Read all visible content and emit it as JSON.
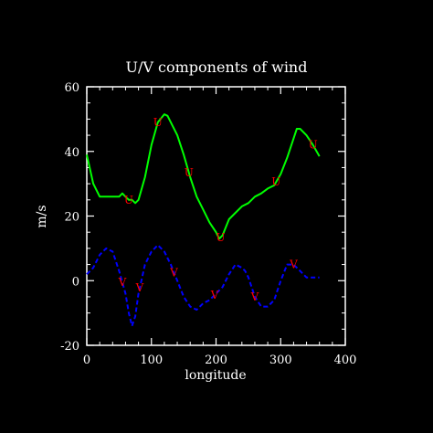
{
  "chart_data": {
    "type": "line",
    "title": "U/V components of wind",
    "xlabel": "longitude",
    "ylabel": "m/s",
    "xlim": [
      0,
      400
    ],
    "ylim": [
      -20,
      60
    ],
    "xticks": [
      0,
      100,
      200,
      300,
      400
    ],
    "yticks": [
      -20,
      0,
      20,
      40,
      60
    ],
    "grid": false,
    "series": [
      {
        "name": "U",
        "color": "#00ff00",
        "line_style": "solid",
        "x": [
          0,
          10,
          20,
          30,
          40,
          50,
          55,
          60,
          65,
          70,
          75,
          80,
          90,
          100,
          110,
          120,
          125,
          130,
          140,
          150,
          160,
          170,
          180,
          190,
          200,
          205,
          210,
          220,
          230,
          240,
          250,
          260,
          270,
          280,
          290,
          300,
          310,
          320,
          325,
          330,
          340,
          350,
          360
        ],
        "y": [
          39,
          30,
          26,
          26,
          26,
          26,
          27,
          26,
          25,
          25,
          24,
          25,
          32,
          42,
          49,
          51.5,
          51,
          49,
          45,
          39,
          32,
          26,
          22,
          18,
          15,
          13,
          14,
          19,
          21,
          23,
          24,
          26,
          27,
          28.5,
          29.5,
          33,
          38,
          44,
          47,
          47,
          45,
          42,
          38.5
        ],
        "label_x": [
          65,
          110,
          158,
          207,
          293,
          350
        ]
      },
      {
        "name": "V",
        "color": "#0000ff",
        "line_style": "dashed",
        "x": [
          0,
          10,
          20,
          30,
          40,
          50,
          60,
          65,
          70,
          75,
          80,
          90,
          100,
          110,
          120,
          125,
          130,
          140,
          150,
          160,
          170,
          180,
          190,
          200,
          205,
          210,
          220,
          230,
          240,
          245,
          250,
          260,
          270,
          280,
          290,
          300,
          310,
          320,
          330,
          340,
          350,
          360
        ],
        "y": [
          2,
          4,
          8,
          10,
          9,
          3,
          -4,
          -10,
          -14,
          -11,
          -4,
          5,
          9,
          11,
          9,
          7,
          5,
          0,
          -5,
          -8,
          -9,
          -7,
          -6,
          -4,
          -3,
          -2,
          2,
          5,
          4,
          3,
          1,
          -5,
          -8,
          -8,
          -6,
          0,
          5,
          5,
          3,
          1,
          1,
          1
        ],
        "label_x": [
          55,
          82,
          135,
          198,
          260,
          320
        ]
      }
    ]
  }
}
